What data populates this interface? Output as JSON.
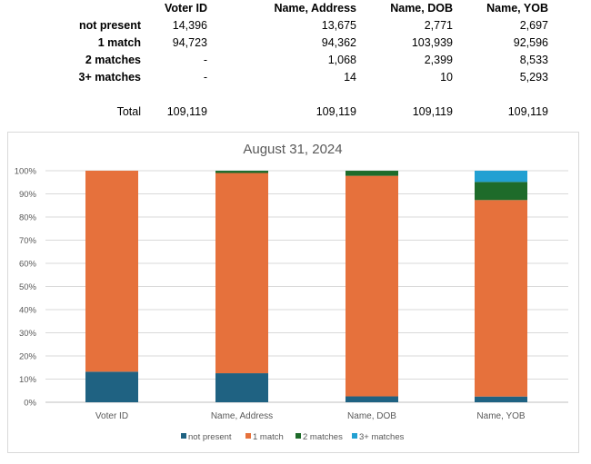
{
  "table": {
    "columns": [
      "Voter ID",
      "Name, Address",
      "Name, DOB",
      "Name, YOB"
    ],
    "rows": [
      {
        "label": "not present",
        "values": [
          "14,396",
          "13,675",
          "2,771",
          "2,697"
        ]
      },
      {
        "label": "1 match",
        "values": [
          "94,723",
          "94,362",
          "103,939",
          "92,596"
        ]
      },
      {
        "label": "2 matches",
        "values": [
          "-",
          "1,068",
          "2,399",
          "8,533"
        ]
      },
      {
        "label": "3+ matches",
        "values": [
          "-",
          "14",
          "10",
          "5,293"
        ]
      },
      {
        "label": "Total",
        "values": [
          "109,119",
          "109,119",
          "109,119",
          "109,119"
        ]
      }
    ]
  },
  "chart_data": {
    "type": "bar",
    "stacked": "percent",
    "title": "August 31, 2024",
    "categories": [
      "Voter ID",
      "Name, Address",
      "Name, DOB",
      "Name, YOB"
    ],
    "series": [
      {
        "name": "not present",
        "color": "#1f6282",
        "values": [
          14396,
          13675,
          2771,
          2697
        ]
      },
      {
        "name": "1 match",
        "color": "#e6713c",
        "values": [
          94723,
          94362,
          103939,
          92596
        ]
      },
      {
        "name": "2 matches",
        "color": "#1e6b2a",
        "values": [
          0,
          1068,
          2399,
          8533
        ]
      },
      {
        "name": "3+ matches",
        "color": "#22a0d2",
        "values": [
          0,
          14,
          10,
          5293
        ]
      }
    ],
    "yticks": [
      "0%",
      "10%",
      "20%",
      "30%",
      "40%",
      "50%",
      "60%",
      "70%",
      "80%",
      "90%",
      "100%"
    ],
    "ylim": [
      0,
      100
    ],
    "grid": true,
    "legend": "bottom"
  }
}
